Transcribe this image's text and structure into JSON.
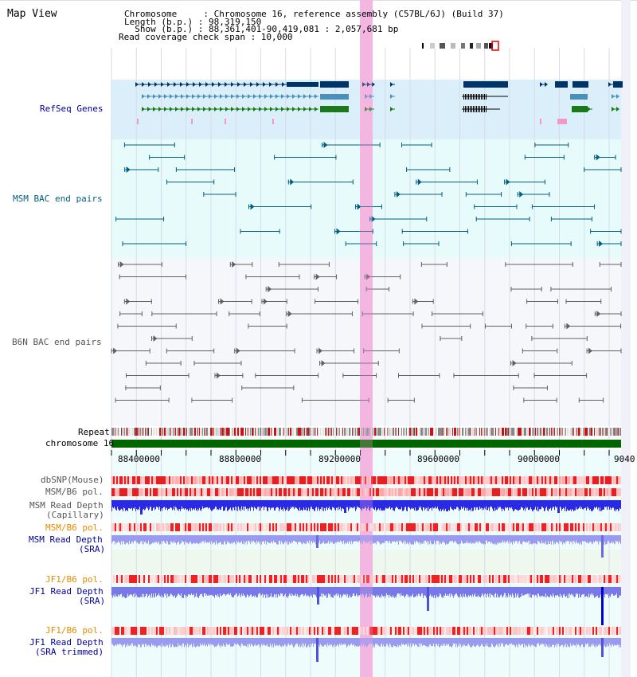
{
  "view_title": "Map View",
  "info": {
    "chromosome": "Chromosome     : Chromosome 16, reference assembly (C57BL/6J) (Build 37)",
    "length": "Length (b.p.) : 98,319,150",
    "show": "  Show (b.p.) : 88,361,401-90,419,081 : 2,057,681 bp",
    "coverage": "Read coverage check span : 10,000"
  },
  "tracks": {
    "refseq": "RefSeq Genes",
    "msm_bac": "MSM BAC end pairs",
    "b6n_bac": "B6N BAC end pairs",
    "repeat": "Repeat",
    "chromosome": "chromosome 16",
    "dbsnp": "dbSNP(Mouse)",
    "msm_b6_pol_1": "MSM/B6 pol.",
    "msm_read_depth_cap_1": "MSM Read Depth",
    "msm_read_depth_cap_2": "(Capillary)",
    "msm_b6_pol_2": "MSM/B6 pol.",
    "msm_read_depth_sra_1": "MSM Read Depth",
    "msm_read_depth_sra_2": "(SRA)",
    "jf1_b6_pol_1": "JF1/B6 pol.",
    "jf1_read_depth_sra_1": "JF1 Read Depth",
    "jf1_read_depth_sra_2": "(SRA)",
    "jf1_b6_pol_2": "JF1/B6 pol.",
    "jf1_read_depth_trim_1": "JF1 Read Depth",
    "jf1_read_depth_trim_2": "(SRA trimmed)"
  },
  "axis_ticks": [
    "88400000",
    "88800000",
    "89200000",
    "89600000",
    "90000000",
    "9040"
  ],
  "colors": {
    "gene_dark": "#003366",
    "gene_mid": "#4a90b8",
    "gene_green": "#1a7a1a",
    "msm_line": "#005f7f",
    "b6n_line": "#606060",
    "highlight": "#f5c8e8",
    "chrom_bar": "#006600",
    "label_blue": "#000099",
    "label_orange": "#e68a00"
  }
}
